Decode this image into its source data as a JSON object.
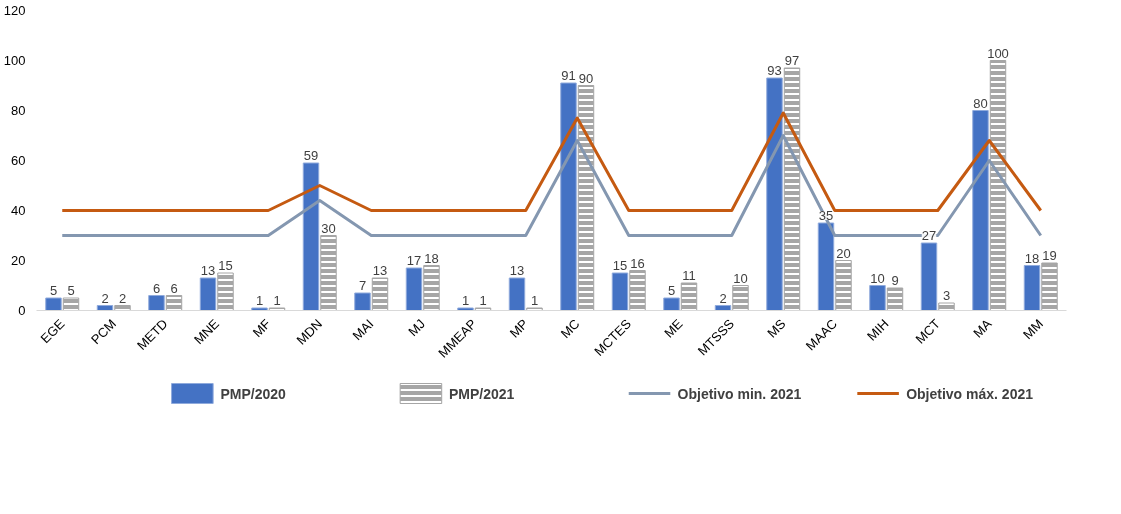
{
  "chart_data": {
    "type": "bar",
    "categories": [
      "EGE",
      "PCM",
      "METD",
      "MNE",
      "MF",
      "MDN",
      "MAI",
      "MJ",
      "MMEAP",
      "MP",
      "MC",
      "MCTES",
      "ME",
      "MTSSS",
      "MS",
      "MAAC",
      "MIH",
      "MCT",
      "MA",
      "MM"
    ],
    "series": [
      {
        "name": "PMP/2020",
        "color": "#4472c4",
        "values": [
          5,
          2,
          6,
          13,
          1,
          59,
          7,
          17,
          1,
          13,
          91,
          15,
          5,
          2,
          93,
          35,
          10,
          27,
          80,
          18
        ],
        "value_labels": [
          "5",
          "2",
          "6",
          "13",
          "1",
          "59",
          "7",
          "17",
          "1",
          "13",
          "91",
          "15",
          "5",
          "2",
          "93",
          "35",
          "10",
          "27",
          "80",
          "18"
        ]
      },
      {
        "name": "PMP/2021",
        "color": "#a6a6a6",
        "values": [
          5,
          2,
          6,
          15,
          1,
          30,
          13,
          18,
          1,
          1,
          90,
          16,
          11,
          10,
          97,
          20,
          9,
          3,
          100,
          19
        ],
        "value_labels": [
          "5",
          "2",
          "6",
          "15",
          "1",
          "30",
          "13",
          "18",
          "1",
          "1",
          "90",
          "16",
          "11",
          "10",
          "97",
          "20",
          "9",
          "3",
          "100",
          "19"
        ]
      },
      {
        "name": "Objetivo min. 2021",
        "type": "line",
        "color": "#8497b0",
        "values": [
          30,
          30,
          30,
          30,
          30,
          44,
          30,
          30,
          30,
          30,
          68,
          30,
          30,
          30,
          70,
          30,
          30,
          30,
          60,
          30
        ]
      },
      {
        "name": "Objetivo máx. 2021",
        "type": "line",
        "color": "#c55a11",
        "values": [
          40,
          40,
          40,
          40,
          40,
          50,
          40,
          40,
          40,
          40,
          77,
          40,
          40,
          40,
          79,
          40,
          40,
          40,
          68,
          40
        ]
      }
    ],
    "ylim": [
      0,
      120
    ],
    "yticks": [
      0,
      20,
      40,
      60,
      80,
      100,
      120
    ],
    "grid": false,
    "legend": "bottom",
    "marker": "none",
    "line_style": "solid"
  }
}
